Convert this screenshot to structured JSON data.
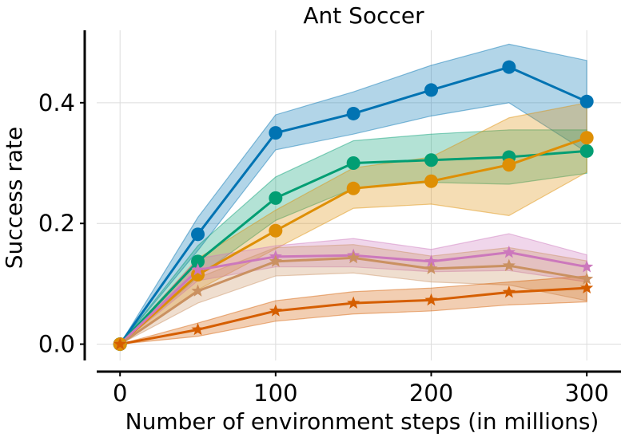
{
  "chart_data": {
    "type": "line",
    "title": "Ant Soccer",
    "xlabel": "Number of environment steps (in millions)",
    "ylabel": "Success rate",
    "xlim": [
      -15,
      322
    ],
    "ylim": [
      -0.027,
      0.52
    ],
    "xticks": [
      0,
      100,
      200,
      300
    ],
    "xtick_labels": [
      "0",
      "100",
      "200",
      "300"
    ],
    "yticks": [
      0.0,
      0.2,
      0.4
    ],
    "ytick_labels": [
      "0.0",
      "0.2",
      "0.4"
    ],
    "grid": true,
    "x": [
      0,
      50,
      100,
      150,
      200,
      250,
      300
    ],
    "series": [
      {
        "name": "blue",
        "color": "#0173b2",
        "marker": "circle",
        "values": [
          0.0,
          0.182,
          0.35,
          0.382,
          0.421,
          0.459,
          0.402
        ],
        "lower": [
          0.0,
          0.155,
          0.322,
          0.348,
          0.378,
          0.4,
          0.318
        ],
        "upper": [
          0.0,
          0.21,
          0.38,
          0.418,
          0.462,
          0.497,
          0.47
        ]
      },
      {
        "name": "green",
        "color": "#029e73",
        "marker": "circle",
        "values": [
          0.0,
          0.137,
          0.242,
          0.3,
          0.305,
          0.31,
          0.32
        ],
        "lower": [
          0.0,
          0.112,
          0.205,
          0.258,
          0.268,
          0.265,
          0.283
        ],
        "upper": [
          0.0,
          0.163,
          0.277,
          0.337,
          0.348,
          0.355,
          0.355
        ]
      },
      {
        "name": "orange",
        "color": "#de8f05",
        "marker": "circle",
        "values": [
          0.0,
          0.115,
          0.188,
          0.258,
          0.27,
          0.297,
          0.342
        ],
        "lower": [
          0.0,
          0.09,
          0.158,
          0.225,
          0.232,
          0.213,
          0.285
        ],
        "upper": [
          0.0,
          0.142,
          0.222,
          0.292,
          0.31,
          0.375,
          0.4
        ]
      },
      {
        "name": "pink",
        "color": "#cc78bc",
        "marker": "star",
        "values": [
          0.0,
          0.123,
          0.145,
          0.147,
          0.137,
          0.152,
          0.128
        ],
        "lower": [
          0.0,
          0.105,
          0.128,
          0.128,
          0.12,
          0.122,
          0.103
        ],
        "upper": [
          0.0,
          0.142,
          0.163,
          0.175,
          0.157,
          0.183,
          0.148
        ]
      },
      {
        "name": "tan",
        "color": "#ca9161",
        "marker": "star",
        "values": [
          0.0,
          0.088,
          0.137,
          0.143,
          0.125,
          0.13,
          0.108
        ],
        "lower": [
          0.0,
          0.068,
          0.113,
          0.118,
          0.103,
          0.098,
          0.072
        ],
        "upper": [
          0.0,
          0.11,
          0.16,
          0.165,
          0.146,
          0.16,
          0.138
        ]
      },
      {
        "name": "red-orange",
        "color": "#d55e00",
        "marker": "star",
        "values": [
          0.0,
          0.024,
          0.055,
          0.068,
          0.073,
          0.086,
          0.093
        ],
        "lower": [
          0.0,
          0.013,
          0.038,
          0.05,
          0.055,
          0.065,
          0.07
        ],
        "upper": [
          0.0,
          0.035,
          0.072,
          0.087,
          0.093,
          0.103,
          0.113
        ]
      }
    ]
  }
}
